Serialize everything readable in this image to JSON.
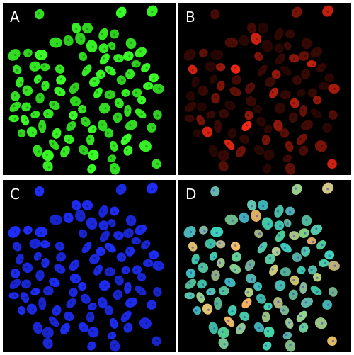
{
  "panels": [
    {
      "id": "A",
      "label": "A",
      "channel": "green",
      "color": "#3ad02a"
    },
    {
      "id": "B",
      "label": "B",
      "channel": "red",
      "color": "#e8301a"
    },
    {
      "id": "C",
      "label": "C",
      "channel": "blue",
      "color": "#1f2fd8"
    },
    {
      "id": "D",
      "label": "D",
      "channel": "merge",
      "color": "#5fc8b4"
    }
  ]
}
